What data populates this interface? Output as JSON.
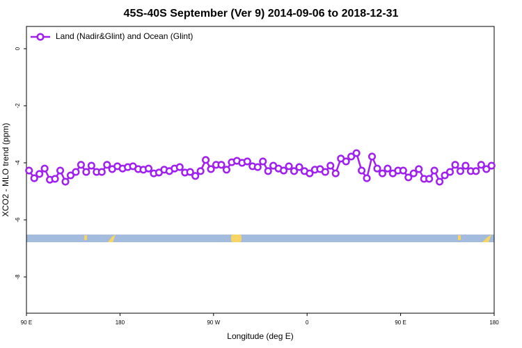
{
  "chart_data": {
    "type": "line",
    "title": "45S-40S September (Ver 9)   2014-09-06 to 2018-12-31",
    "x_label": "Longitude (deg E)",
    "y_label": "XCO2 - MLO trend (ppm)",
    "xlim": [
      90,
      540
    ],
    "ylim": [
      -9.27,
      0.78
    ],
    "xticks": [
      {
        "value": 90,
        "label": "90 E"
      },
      180,
      {
        "value": 270,
        "label": "90 W"
      },
      {
        "value": 360,
        "label": "0"
      },
      {
        "value": 450,
        "label": "90 E"
      },
      {
        "value": 540,
        "label": "180"
      }
    ],
    "yticks": [
      0,
      -2,
      -4,
      -6,
      -8
    ],
    "legend": "topleft",
    "x": [
      92.5,
      97.5,
      102.5,
      107.5,
      112.5,
      117.5,
      122.5,
      127.5,
      132.5,
      137.5,
      142.5,
      147.5,
      152.5,
      157.5,
      162.5,
      167.5,
      172.5,
      177.5,
      182.5,
      187.5,
      192.5,
      197.5,
      202.5,
      207.5,
      212.5,
      217.5,
      222.5,
      227.5,
      232.5,
      237.5,
      242.5,
      247.5,
      252.5,
      257.5,
      262.5,
      267.5,
      272.5,
      277.5,
      282.5,
      287.5,
      292.5,
      297.5,
      302.5,
      307.5,
      312.5,
      317.5,
      322.5,
      327.5,
      332.5,
      337.5,
      342.5,
      347.5,
      352.5,
      357.5,
      362.5,
      367.5,
      372.5,
      377.5,
      382.5,
      387.5,
      392.5,
      397.5,
      402.5,
      407.5,
      412.5,
      417.5,
      422.5,
      427.5,
      432.5,
      437.5,
      442.5,
      447.5,
      452.5,
      457.5,
      462.5,
      467.5,
      472.5,
      477.5,
      482.5,
      487.5,
      492.5,
      497.5,
      502.5,
      507.5,
      512.5,
      517.5,
      522.5,
      527.5,
      532.5,
      537.5
    ],
    "series": [
      {
        "name": "Land (Nadir&Glint) and Ocean (Glint)",
        "color": "#a020f0",
        "values": [
          -4.27,
          -4.54,
          -4.39,
          -4.2,
          -4.59,
          -4.56,
          -4.27,
          -4.66,
          -4.44,
          -4.32,
          -4.07,
          -4.32,
          -4.1,
          -4.32,
          -4.32,
          -4.07,
          -4.22,
          -4.12,
          -4.2,
          -4.15,
          -4.12,
          -4.22,
          -4.24,
          -4.2,
          -4.37,
          -4.34,
          -4.24,
          -4.29,
          -4.2,
          -4.15,
          -4.34,
          -4.32,
          -4.46,
          -4.29,
          -3.9,
          -4.22,
          -4.07,
          -4.07,
          -4.24,
          -3.98,
          -3.93,
          -4.0,
          -3.95,
          -4.12,
          -4.15,
          -3.95,
          -4.29,
          -4.1,
          -4.2,
          -4.27,
          -4.12,
          -4.29,
          -4.15,
          -4.29,
          -4.37,
          -4.24,
          -4.22,
          -4.32,
          -4.1,
          -4.37,
          -3.85,
          -3.95,
          -3.78,
          -3.66,
          -4.27,
          -4.54,
          -3.78,
          -4.2,
          -4.37,
          -4.2,
          -4.37,
          -4.27,
          -4.27,
          -4.51,
          -4.37,
          -4.22,
          -4.56,
          -4.56,
          -4.27,
          -4.66,
          -4.44,
          -4.32,
          -4.07,
          -4.29,
          -4.1,
          -4.29,
          -4.29,
          -4.07,
          -4.22,
          -4.1
        ]
      }
    ]
  }
}
